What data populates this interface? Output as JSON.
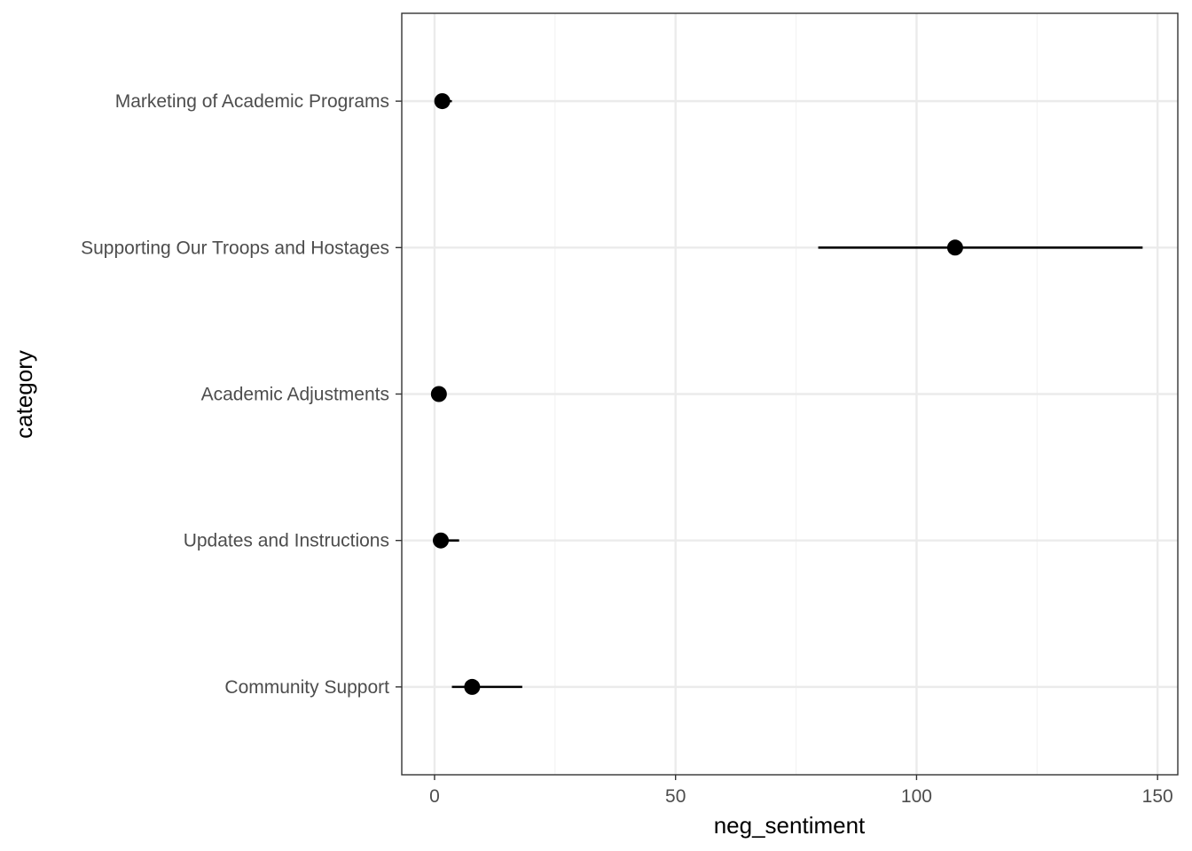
{
  "chart_data": {
    "type": "pointrange",
    "orientation": "horizontal",
    "xlabel": "neg_sentiment",
    "ylabel": "category",
    "xlim": [
      -6.8,
      154.2
    ],
    "x_ticks": [
      0,
      50,
      100,
      150
    ],
    "x_minor_ticks": [
      25,
      75,
      125
    ],
    "grid": true,
    "categories": [
      "Marketing of Academic Programs",
      "Supporting Our Troops and Hostages",
      "Academic Adjustments",
      "Updates and Instructions",
      "Community Support"
    ],
    "points": [
      {
        "category": "Marketing of Academic Programs",
        "value": 1.6,
        "low": 0.4,
        "high": 3.6
      },
      {
        "category": "Supporting Our Troops and Hostages",
        "value": 108.0,
        "low": 79.6,
        "high": 146.9
      },
      {
        "category": "Academic Adjustments",
        "value": 0.9,
        "low": 0.5,
        "high": 1.3
      },
      {
        "category": "Updates and Instructions",
        "value": 1.3,
        "low": 0.3,
        "high": 5.1
      },
      {
        "category": "Community Support",
        "value": 7.8,
        "low": 3.6,
        "high": 18.2
      }
    ],
    "colors": {
      "point": "#000000",
      "panel_border": "#333333",
      "grid_major": "#ebebeb",
      "grid_minor": "#f3f3f3",
      "tick_text": "#4d4d4d"
    }
  }
}
